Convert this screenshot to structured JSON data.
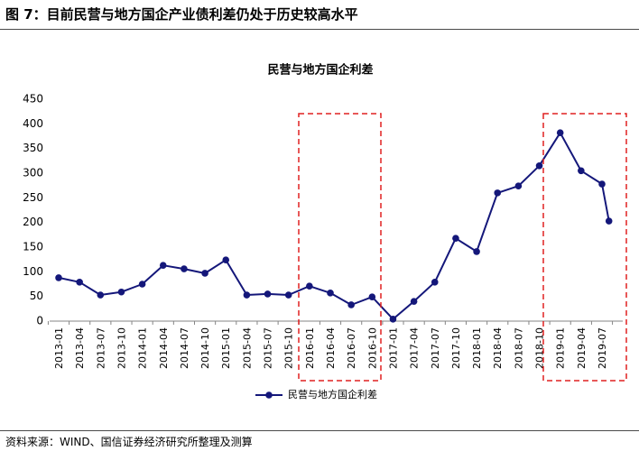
{
  "header": {
    "title": "图 7：目前民营与地方国企产业债利差仍处于历史较高水平"
  },
  "chart_data": {
    "type": "line",
    "title": "民营与地方国企利差",
    "xlabel": "",
    "ylabel": "",
    "ylim": [
      0,
      450
    ],
    "yticks": [
      0,
      50,
      100,
      150,
      200,
      250,
      300,
      350,
      400,
      450
    ],
    "xticks": [
      "2013-01",
      "2013-04",
      "2013-07",
      "2013-10",
      "2014-01",
      "2014-04",
      "2014-07",
      "2014-10",
      "2015-01",
      "2015-04",
      "2015-07",
      "2015-10",
      "2016-01",
      "2016-04",
      "2016-07",
      "2016-10",
      "2017-01",
      "2017-04",
      "2017-07",
      "2017-10",
      "2018-01",
      "2018-04",
      "2018-07",
      "2018-10",
      "2019-01",
      "2019-04",
      "2019-07"
    ],
    "grid": false,
    "legend": "bottom",
    "series": [
      {
        "name": "民营与地方国企利差",
        "color": "#14177a",
        "x": [
          "2013-01",
          "2013-04",
          "2013-07",
          "2013-10",
          "2014-01",
          "2014-04",
          "2014-07",
          "2014-10",
          "2015-01",
          "2015-04",
          "2015-07",
          "2015-10",
          "2016-01",
          "2016-04",
          "2016-07",
          "2016-10",
          "2017-01",
          "2017-04",
          "2017-07",
          "2017-10",
          "2018-01",
          "2018-04",
          "2018-07",
          "2018-10",
          "2019-01",
          "2019-04",
          "2019-07",
          "2019-08"
        ],
        "y": [
          88,
          79,
          53,
          59,
          75,
          113,
          106,
          97,
          124,
          53,
          55,
          53,
          71,
          57,
          33,
          49,
          4,
          40,
          79,
          168,
          141,
          260,
          274,
          315,
          382,
          305,
          278,
          203
        ]
      }
    ],
    "highlight_color": "#e02020",
    "axis_color": "#868686"
  },
  "footer": {
    "source": "资料来源：WIND、国信证券经济研究所整理及测算"
  }
}
